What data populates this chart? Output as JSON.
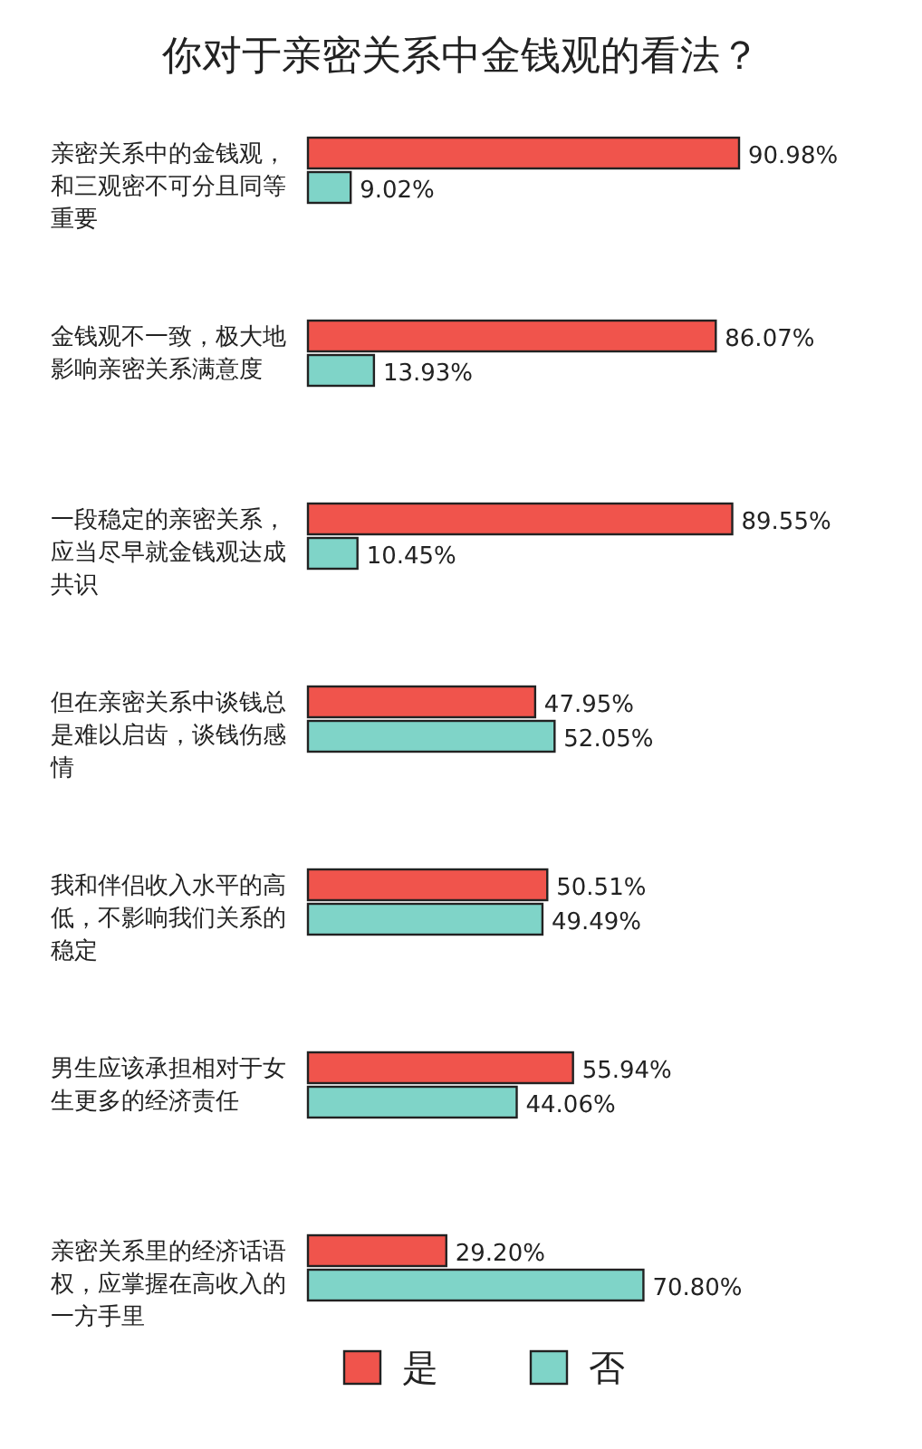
{
  "chart_data": {
    "type": "bar",
    "orientation": "horizontal",
    "title": "你对于亲密关系中金钱观的看法？",
    "categories": [
      "亲密关系中的金钱观，和三观密不可分且同等重要",
      "金钱观不一致，极大地影响亲密关系满意度",
      "一段稳定的亲密关系，应当尽早就金钱观达成共识",
      "但在亲密关系中谈钱总是难以启齿，谈钱伤感情",
      "我和伴侣收入水平的高低，不影响我们关系的稳定",
      "男生应该承担相对于女生更多的经济责任",
      "亲密关系里的经济话语权，应掌握在高收入的一方手里"
    ],
    "series": [
      {
        "name": "是",
        "color": "#f0544c",
        "values": [
          90.98,
          86.07,
          89.55,
          47.95,
          50.51,
          55.94,
          29.2
        ],
        "value_labels": [
          "90.98%",
          "86.07%",
          "89.55%",
          "47.95%",
          "50.51%",
          "55.94%",
          "29.20%"
        ]
      },
      {
        "name": "否",
        "color": "#7fd4c8",
        "values": [
          9.02,
          13.93,
          10.45,
          52.05,
          49.49,
          44.06,
          70.8
        ],
        "value_labels": [
          "9.02%",
          "13.93%",
          "10.45%",
          "52.05%",
          "49.49%",
          "44.06%",
          "70.80%"
        ]
      }
    ],
    "legend": "bottom"
  }
}
